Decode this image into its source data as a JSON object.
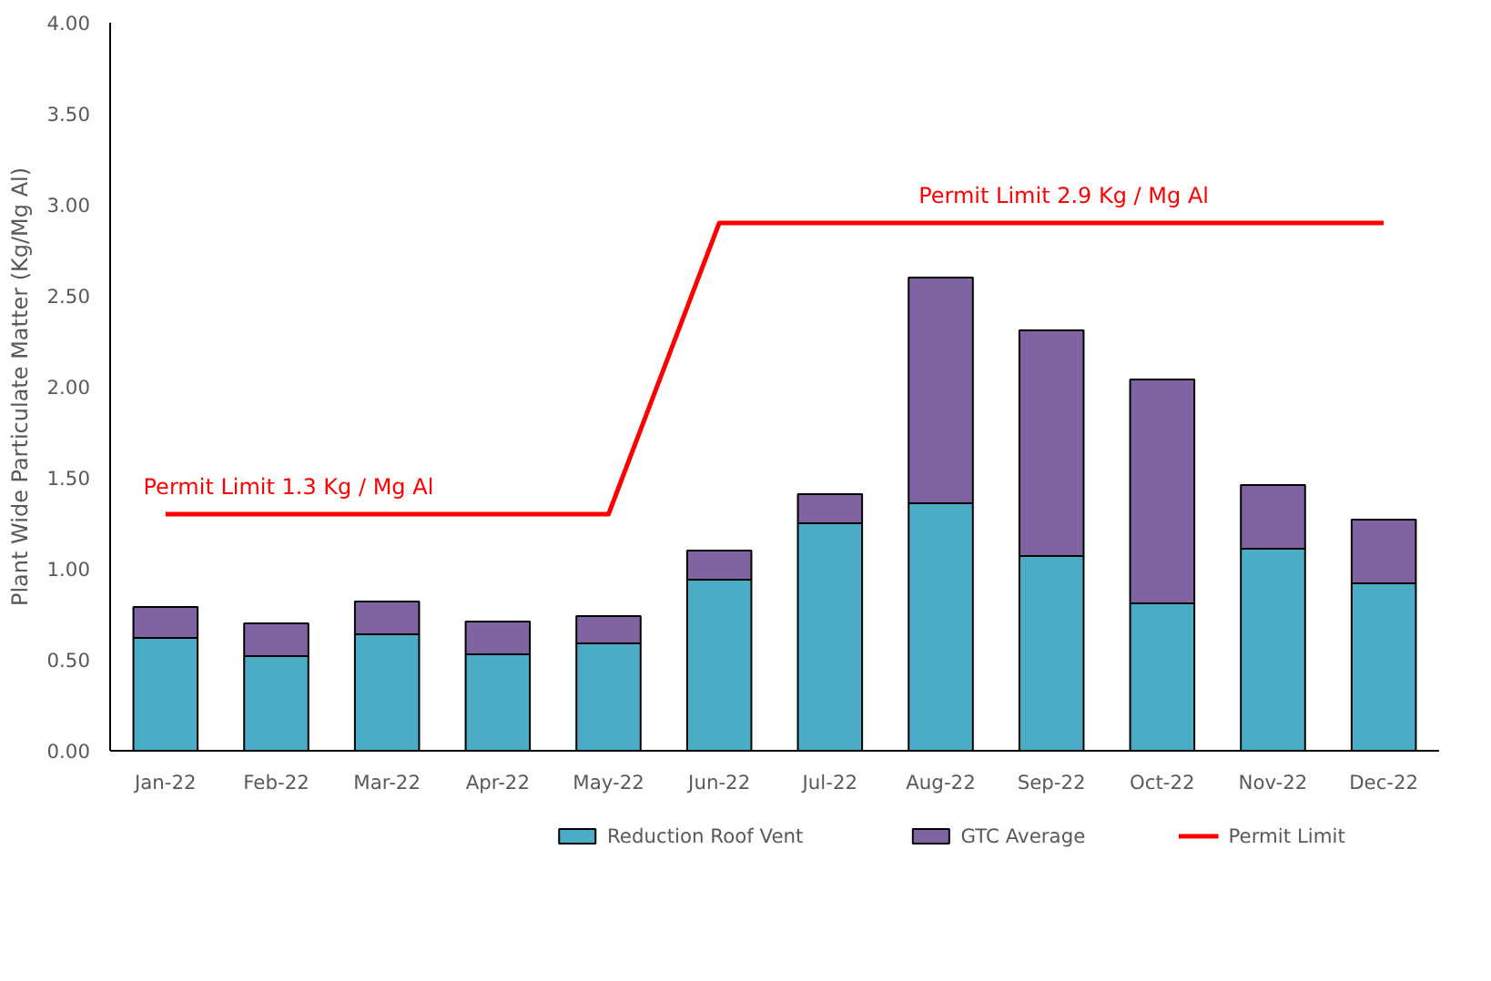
{
  "chart_data": {
    "type": "bar",
    "stacked": true,
    "ylabel": "Plant Wide Particulate Matter (Kg/Mg Al)",
    "categories": [
      "Jan-22",
      "Feb-22",
      "Mar-22",
      "Apr-22",
      "May-22",
      "Jun-22",
      "Jul-22",
      "Aug-22",
      "Sep-22",
      "Oct-22",
      "Nov-22",
      "Dec-22"
    ],
    "series": [
      {
        "name": "Reduction Roof Vent",
        "color": "#4bacc6",
        "values": [
          0.62,
          0.52,
          0.64,
          0.53,
          0.59,
          0.94,
          1.25,
          1.36,
          1.07,
          0.81,
          1.11,
          0.92
        ]
      },
      {
        "name": "GTC Average",
        "color": "#8064a2",
        "values": [
          0.17,
          0.18,
          0.18,
          0.18,
          0.15,
          0.16,
          0.16,
          1.24,
          1.24,
          1.23,
          0.35,
          0.35
        ]
      },
      {
        "name": "Permit Limit",
        "type": "line",
        "color": "#ff0000",
        "values": [
          1.3,
          1.3,
          1.3,
          1.3,
          1.3,
          2.9,
          2.9,
          2.9,
          2.9,
          2.9,
          2.9,
          2.9
        ]
      }
    ],
    "ylim": [
      0,
      4
    ],
    "yticks": [
      {
        "value": 0,
        "label": "0.00"
      },
      {
        "value": 0.5,
        "label": "0.50"
      },
      {
        "value": 1,
        "label": "1.00"
      },
      {
        "value": 1.5,
        "label": "1.50"
      },
      {
        "value": 2,
        "label": "2.00"
      },
      {
        "value": 2.5,
        "label": "2.50"
      },
      {
        "value": 3,
        "label": "3.00"
      },
      {
        "value": 3.5,
        "label": "3.50"
      },
      {
        "value": 4,
        "label": "4.00"
      }
    ],
    "annotations": [
      {
        "text": "Permit Limit 1.3 Kg / Mg Al",
        "x": "Jan-22",
        "y": 1.3
      },
      {
        "text": "Permit Limit 2.9 Kg / Mg Al",
        "x": "Aug-22",
        "y": 2.9
      }
    ],
    "grid": false,
    "legend": "bottom"
  }
}
